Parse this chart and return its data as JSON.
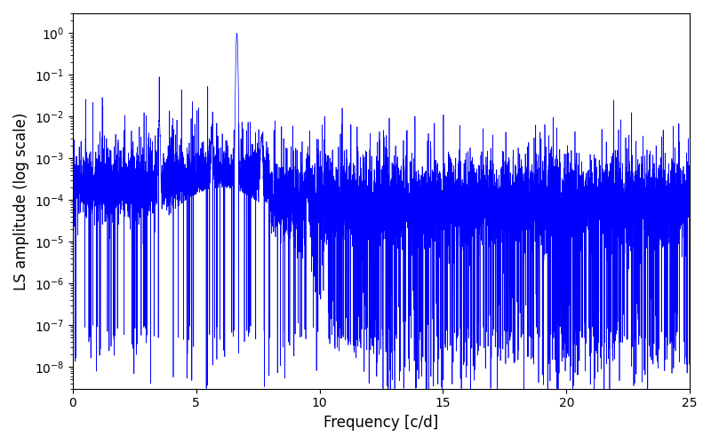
{
  "freq_min": 0.0,
  "freq_max": 25.0,
  "n_points": 8000,
  "main_peak_freq": 6.65,
  "main_peak_amp": 1.0,
  "secondary_peak_freq": 3.5,
  "secondary_peak_amp": 0.008,
  "tertiary_peak_freq": 9.5,
  "tertiary_peak_amp": 0.0002,
  "noise_floor": 0.0001,
  "line_color": "#0000ff",
  "line_width": 0.5,
  "xlabel": "Frequency [c/d]",
  "ylabel": "LS amplitude (log scale)",
  "xlim": [
    0,
    25
  ],
  "ylim_min": 3e-09,
  "ylim_max": 3.0,
  "xticks": [
    0,
    5,
    10,
    15,
    20,
    25
  ],
  "figsize": [
    8.0,
    5.0
  ],
  "dpi": 100,
  "seed": 12345
}
